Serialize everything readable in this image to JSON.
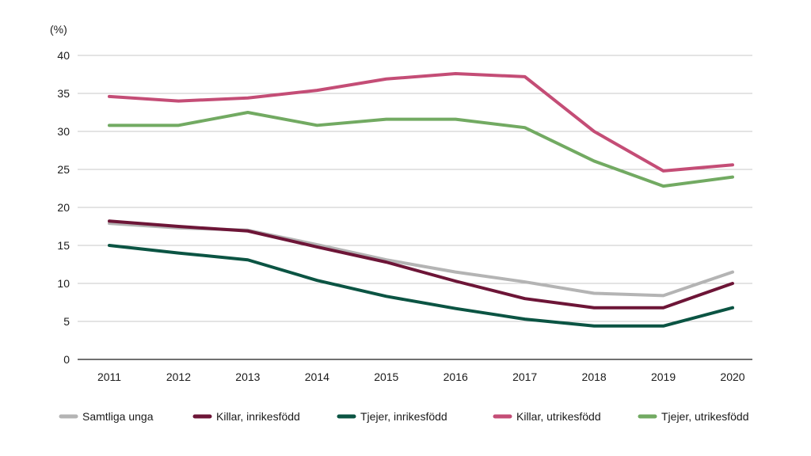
{
  "chart_data": {
    "type": "line",
    "ylabel": "(%)",
    "ylim": [
      0,
      40
    ],
    "yticks": [
      0,
      5,
      10,
      15,
      20,
      25,
      30,
      35,
      40
    ],
    "x": [
      "2011",
      "2012",
      "2013",
      "2014",
      "2015",
      "2016",
      "2017",
      "2018",
      "2019",
      "2020"
    ],
    "grid": true,
    "legend_position": "bottom",
    "series": [
      {
        "name": "Samtliga unga",
        "color": "#b4b4b4",
        "values": [
          17.9,
          17.3,
          17.0,
          15.1,
          13.1,
          11.5,
          10.2,
          8.7,
          8.4,
          11.5
        ]
      },
      {
        "name": "Killar, inrikesfödd",
        "color": "#6d1537",
        "values": [
          18.2,
          17.5,
          16.9,
          14.8,
          12.8,
          10.3,
          8.0,
          6.8,
          6.8,
          10.0
        ]
      },
      {
        "name": "Tjejer, inrikesfödd",
        "color": "#0b5443",
        "values": [
          15.0,
          14.0,
          13.1,
          10.4,
          8.3,
          6.7,
          5.3,
          4.4,
          4.4,
          6.8
        ]
      },
      {
        "name": "Killar, utrikesfödd",
        "color": "#c44d76",
        "values": [
          34.6,
          34.0,
          34.4,
          35.4,
          36.9,
          37.6,
          37.2,
          30.0,
          24.8,
          25.6
        ]
      },
      {
        "name": "Tjejer, utrikesfödd",
        "color": "#72aa62",
        "values": [
          30.8,
          30.8,
          32.5,
          30.8,
          31.6,
          31.6,
          30.5,
          26.1,
          22.8,
          24.0
        ]
      }
    ]
  }
}
